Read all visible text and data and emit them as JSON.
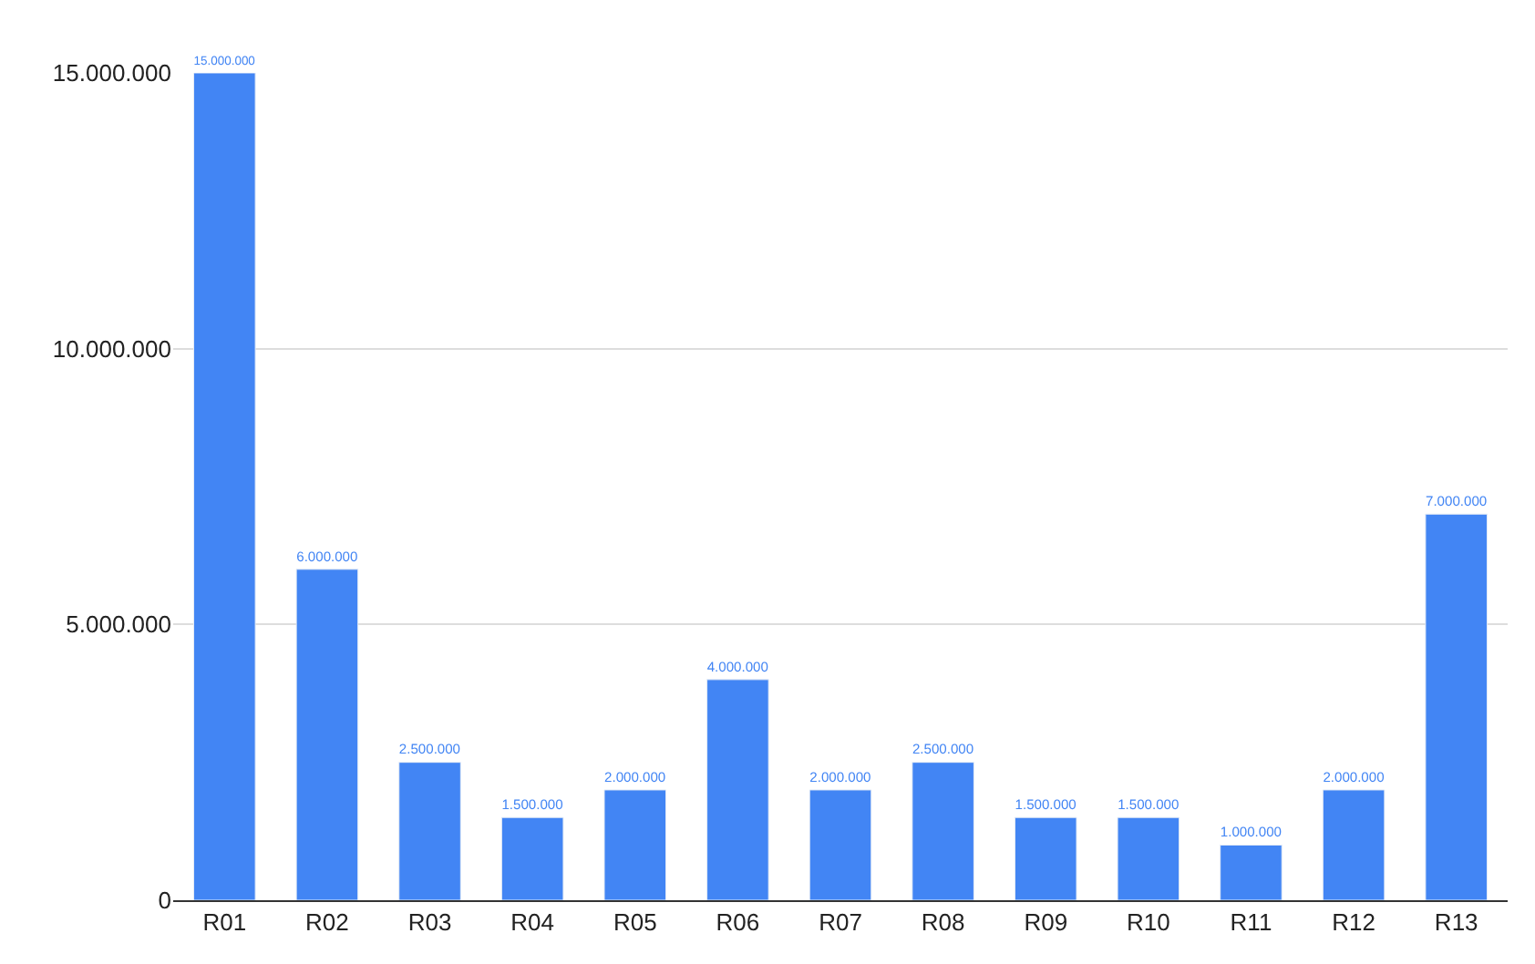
{
  "chart_data": {
    "type": "bar",
    "categories": [
      "R01",
      "R02",
      "R03",
      "R04",
      "R05",
      "R06",
      "R07",
      "R08",
      "R09",
      "R10",
      "R11",
      "R12",
      "R13"
    ],
    "values": [
      15000000,
      6000000,
      2500000,
      1500000,
      2000000,
      4000000,
      2000000,
      2500000,
      1500000,
      1500000,
      1000000,
      2000000,
      7000000
    ],
    "value_labels": [
      "15.000.000",
      "6.000.000",
      "2.500.000",
      "1.500.000",
      "2.000.000",
      "4.000.000",
      "2.000.000",
      "2.500.000",
      "1.500.000",
      "1.500.000",
      "1.000.000",
      "2.000.000",
      "7.000.000"
    ],
    "color": "#4285f4",
    "ylim": [
      0,
      15000000
    ],
    "yticks": [
      {
        "value": 0,
        "label": "0"
      },
      {
        "value": 5000000,
        "label": "5.000.000"
      },
      {
        "value": 10000000,
        "label": "10.000.000"
      },
      {
        "value": 15000000,
        "label": "15.000.000"
      }
    ],
    "grid": "y"
  }
}
